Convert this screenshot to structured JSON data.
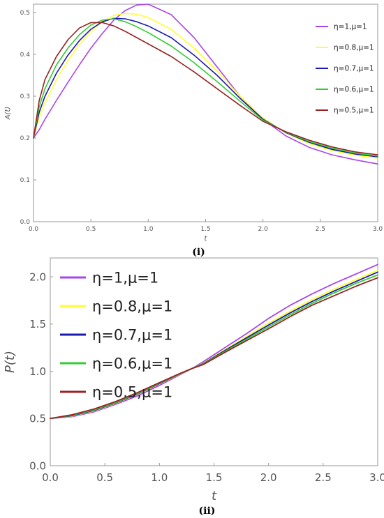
{
  "chart_data": [
    {
      "type": "line",
      "caption": "(i)",
      "xlabel": "t",
      "ylabel": "A(t)",
      "xlim": [
        0,
        3
      ],
      "ylim": [
        0,
        0.52
      ],
      "xticks": [
        "0.0",
        "0.5",
        "1.0",
        "1.5",
        "2.0",
        "2.5",
        "3.0"
      ],
      "yticks": [
        "0.0",
        "0.1",
        "0.2",
        "0.3",
        "0.4",
        "0.5"
      ],
      "legend_position": "right",
      "x": [
        0,
        0.05,
        0.1,
        0.2,
        0.3,
        0.4,
        0.5,
        0.6,
        0.7,
        0.8,
        0.9,
        1.0,
        1.2,
        1.4,
        1.6,
        1.8,
        2.0,
        2.2,
        2.4,
        2.6,
        2.8,
        3.0
      ],
      "series": [
        {
          "name": "η=1,μ=1",
          "color": "#aa44ee",
          "values": [
            0.2,
            0.22,
            0.245,
            0.29,
            0.333,
            0.375,
            0.415,
            0.45,
            0.482,
            0.505,
            0.518,
            0.52,
            0.495,
            0.44,
            0.37,
            0.3,
            0.245,
            0.205,
            0.178,
            0.16,
            0.148,
            0.138
          ]
        },
        {
          "name": "η=0.8,μ=1",
          "color": "#ffff33",
          "values": [
            0.2,
            0.25,
            0.285,
            0.34,
            0.385,
            0.425,
            0.455,
            0.478,
            0.493,
            0.498,
            0.496,
            0.488,
            0.46,
            0.415,
            0.36,
            0.3,
            0.248,
            0.212,
            0.187,
            0.17,
            0.159,
            0.152
          ]
        },
        {
          "name": "η=0.7,μ=1",
          "color": "#1a1ab0",
          "values": [
            0.2,
            0.262,
            0.3,
            0.355,
            0.398,
            0.433,
            0.46,
            0.478,
            0.486,
            0.485,
            0.478,
            0.468,
            0.44,
            0.398,
            0.35,
            0.295,
            0.245,
            0.213,
            0.19,
            0.173,
            0.162,
            0.155
          ]
        },
        {
          "name": "η=0.6,μ=1",
          "color": "#33cc33",
          "values": [
            0.2,
            0.275,
            0.318,
            0.375,
            0.415,
            0.447,
            0.47,
            0.482,
            0.485,
            0.478,
            0.466,
            0.452,
            0.42,
            0.38,
            0.335,
            0.288,
            0.243,
            0.214,
            0.192,
            0.176,
            0.164,
            0.157
          ]
        },
        {
          "name": "η=0.5,μ=1",
          "color": "#992222",
          "values": [
            0.2,
            0.29,
            0.34,
            0.395,
            0.435,
            0.463,
            0.476,
            0.476,
            0.468,
            0.455,
            0.44,
            0.425,
            0.395,
            0.358,
            0.318,
            0.278,
            0.24,
            0.215,
            0.195,
            0.179,
            0.167,
            0.16
          ]
        }
      ]
    },
    {
      "type": "line",
      "caption": "(ii)",
      "xlabel": "t",
      "ylabel": "P(t)",
      "xlim": [
        0,
        3
      ],
      "ylim": [
        0,
        2.2
      ],
      "xticks": [
        "0.0",
        "0.5",
        "1.0",
        "1.5",
        "2.0",
        "2.5",
        "3.0"
      ],
      "yticks": [
        "0.0",
        "0.5",
        "1.0",
        "1.5",
        "2.0"
      ],
      "legend_position": "top-left",
      "x": [
        0,
        0.2,
        0.4,
        0.6,
        0.8,
        1.0,
        1.2,
        1.3,
        1.4,
        1.6,
        1.8,
        2.0,
        2.2,
        2.4,
        2.6,
        2.8,
        3.0
      ],
      "series": [
        {
          "name": "η=1,μ=1",
          "color": "#aa44ee",
          "values": [
            0.5,
            0.52,
            0.57,
            0.65,
            0.74,
            0.85,
            0.97,
            1.03,
            1.1,
            1.25,
            1.4,
            1.56,
            1.7,
            1.82,
            1.93,
            2.03,
            2.13
          ]
        },
        {
          "name": "η=0.8,μ=1",
          "color": "#ffff33",
          "values": [
            0.5,
            0.525,
            0.58,
            0.66,
            0.755,
            0.865,
            0.975,
            1.03,
            1.085,
            1.23,
            1.37,
            1.51,
            1.64,
            1.76,
            1.87,
            1.97,
            2.07
          ]
        },
        {
          "name": "η=0.7,μ=1",
          "color": "#1a1ab0",
          "values": [
            0.5,
            0.53,
            0.585,
            0.665,
            0.76,
            0.87,
            0.978,
            1.03,
            1.08,
            1.22,
            1.355,
            1.49,
            1.62,
            1.74,
            1.85,
            1.95,
            2.05
          ]
        },
        {
          "name": "η=0.6,μ=1",
          "color": "#33cc33",
          "values": [
            0.5,
            0.535,
            0.59,
            0.67,
            0.765,
            0.875,
            0.98,
            1.03,
            1.075,
            1.21,
            1.34,
            1.47,
            1.6,
            1.72,
            1.83,
            1.93,
            2.02
          ]
        },
        {
          "name": "η=0.5,μ=1",
          "color": "#992222",
          "values": [
            0.5,
            0.54,
            0.6,
            0.68,
            0.775,
            0.88,
            0.983,
            1.03,
            1.07,
            1.2,
            1.325,
            1.45,
            1.58,
            1.7,
            1.8,
            1.9,
            1.99
          ]
        }
      ]
    }
  ]
}
